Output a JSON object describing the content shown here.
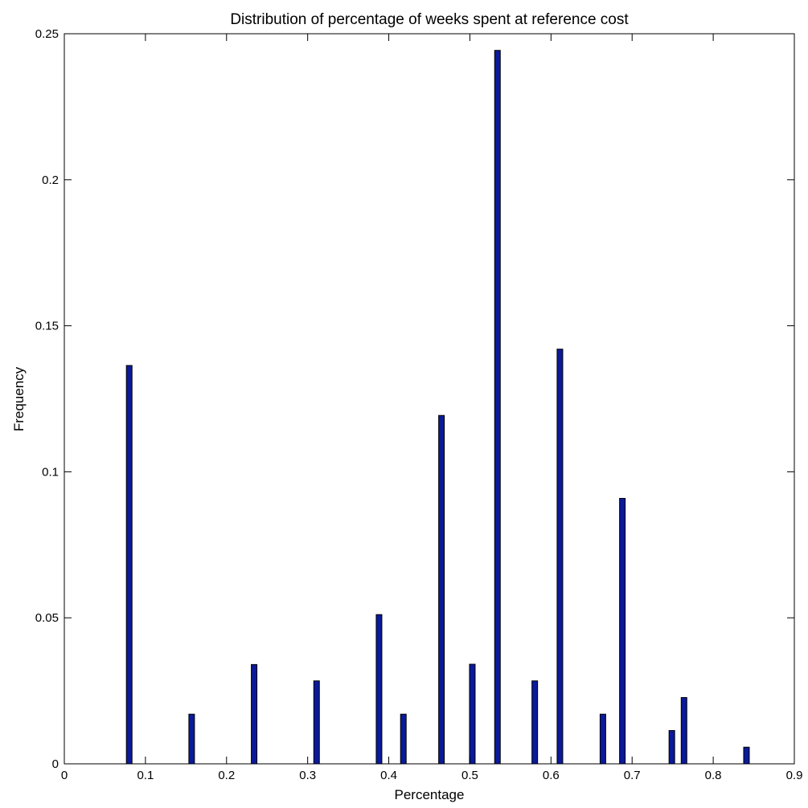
{
  "chart_data": {
    "type": "bar",
    "title": "Distribution of percentage of weeks spent at reference cost",
    "xlabel": "Percentage",
    "ylabel": "Frequency",
    "xlim": [
      0,
      0.9
    ],
    "ylim": [
      0,
      0.25
    ],
    "xticks": [
      "0",
      "0.1",
      "0.2",
      "0.3",
      "0.4",
      "0.5",
      "0.6",
      "0.7",
      "0.8",
      "0.9"
    ],
    "yticks": [
      "0",
      "0.05",
      "0.1",
      "0.15",
      "0.2",
      "0.25"
    ],
    "grid": false,
    "bar_color": "#0a1a9a",
    "bar_edge_color": "#000000",
    "x": [
      0.08,
      0.157,
      0.234,
      0.311,
      0.388,
      0.418,
      0.465,
      0.503,
      0.534,
      0.58,
      0.611,
      0.664,
      0.688,
      0.749,
      0.764,
      0.841
    ],
    "values": [
      0.1364,
      0.017,
      0.034,
      0.0284,
      0.0511,
      0.017,
      0.1193,
      0.0341,
      0.2443,
      0.0284,
      0.142,
      0.017,
      0.0909,
      0.0114,
      0.0227,
      0.0057
    ]
  }
}
